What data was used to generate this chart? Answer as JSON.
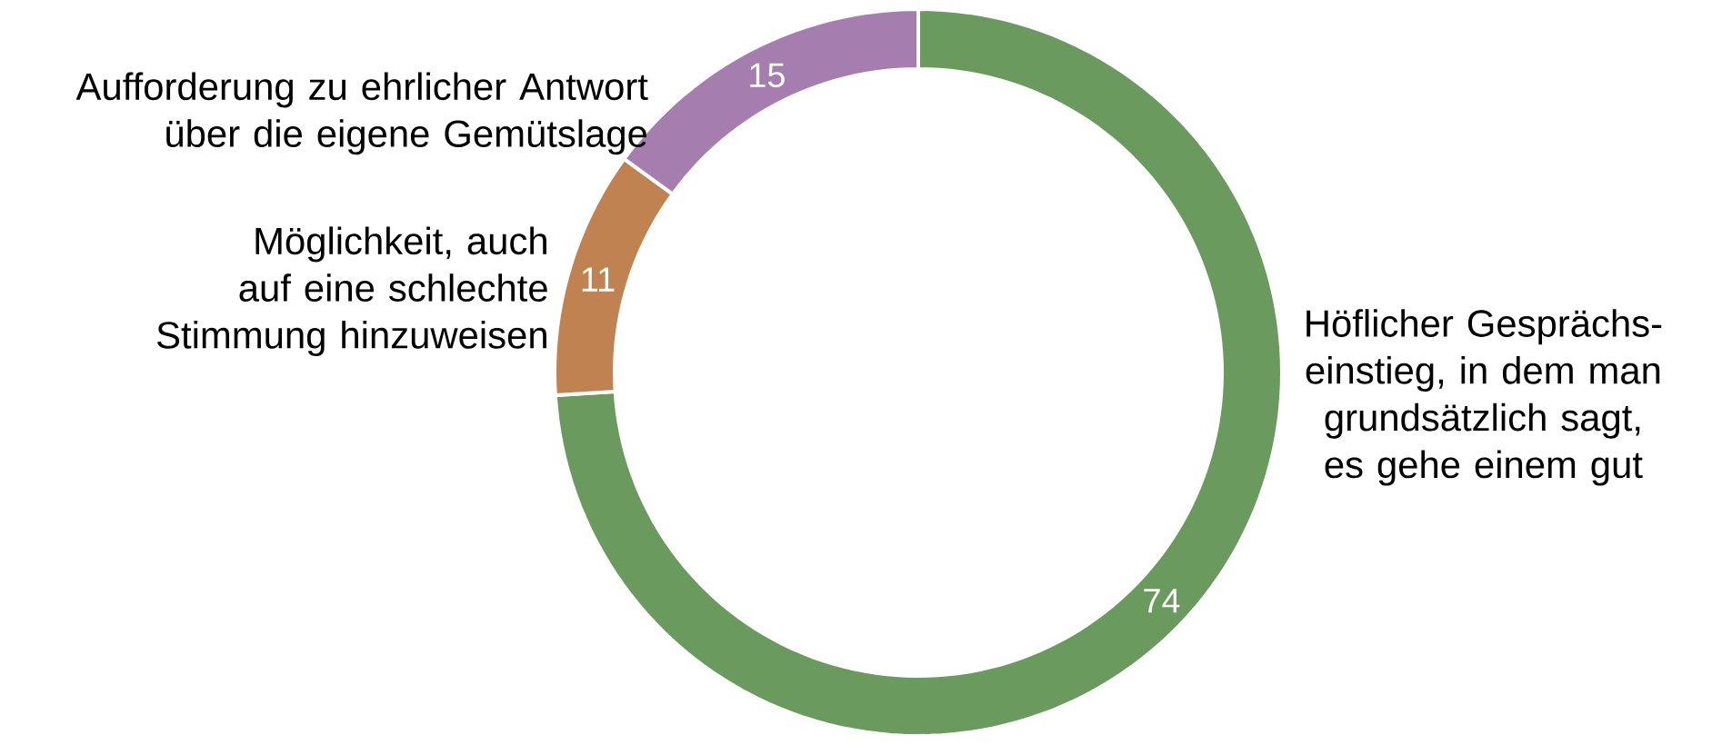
{
  "chart_data": {
    "type": "donut",
    "categories": [
      "Höflicher Gesprächs-einstieg, in dem man grundsätzlich sagt, es gehe einem gut",
      "Möglichkeit, auch auf eine schlechte Stimmung hinzuweisen",
      "Aufforderung zu ehrlicher Antwort über die eigene Gemütslage"
    ],
    "values": [
      74,
      11,
      15
    ],
    "colors": [
      "#6a9a5e",
      "#c08250",
      "#a67daf"
    ],
    "data_labels": true
  }
}
